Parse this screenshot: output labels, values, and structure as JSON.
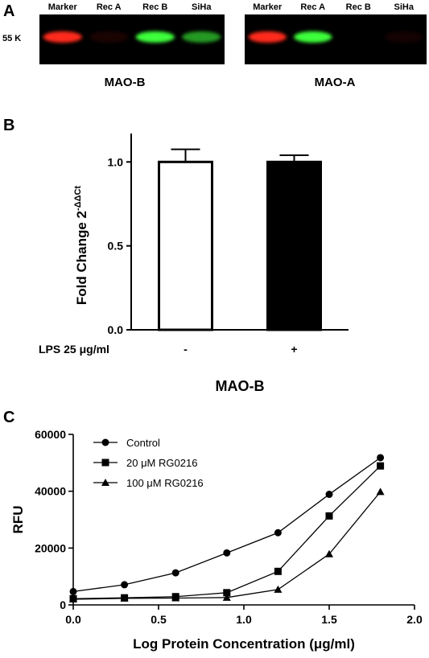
{
  "panels": {
    "a": "A",
    "b": "B",
    "c": "C"
  },
  "blots": [
    {
      "caption": "MAO-B",
      "size_marker": "55 K",
      "lanes": [
        {
          "label": "Marker",
          "band": "red",
          "intensity": 1.0
        },
        {
          "label": "Rec A",
          "band": "red",
          "intensity": 0.1
        },
        {
          "label": "Rec B",
          "band": "green",
          "intensity": 1.0
        },
        {
          "label": "SiHa",
          "band": "green",
          "intensity": 0.6
        }
      ]
    },
    {
      "caption": "MAO-A",
      "size_marker": "",
      "lanes": [
        {
          "label": "Marker",
          "band": "red",
          "intensity": 1.0
        },
        {
          "label": "Rec A",
          "band": "green",
          "intensity": 1.0
        },
        {
          "label": "Rec B",
          "band": "none",
          "intensity": 0
        },
        {
          "label": "SiHa",
          "band": "red",
          "intensity": 0.08
        }
      ]
    }
  ],
  "chart_data": [
    {
      "type": "bar",
      "ylabel_main": "Fold Change 2",
      "ylabel_sup": "-ΔΔCt",
      "category_axis_label": "LPS 25 μg/ml",
      "caption": "MAO-B",
      "categories": [
        "-",
        "+"
      ],
      "values": [
        1.0,
        1.0
      ],
      "errors": [
        0.075,
        0.04
      ],
      "fills": [
        "#ffffff",
        "#000000"
      ],
      "ylim": [
        0.0,
        1.15
      ],
      "yticks": [
        "0.0",
        "0.5",
        "1.0"
      ],
      "grid": false
    },
    {
      "type": "line",
      "xlabel": "Log Protein Concentration (μg/ml)",
      "ylabel": "RFU",
      "xlim": [
        0.0,
        2.0
      ],
      "ylim": [
        0,
        60000
      ],
      "xticks": [
        "0.0",
        "0.5",
        "1.0",
        "1.5",
        "2.0"
      ],
      "yticks": [
        "0",
        "20000",
        "40000",
        "60000"
      ],
      "legend_position": "top-left",
      "grid": false,
      "x": [
        0.0,
        0.3,
        0.6,
        0.9,
        1.2,
        1.5,
        1.8
      ],
      "series": [
        {
          "name": "Control",
          "marker": "circle",
          "values": [
            4700,
            7100,
            11300,
            18300,
            25400,
            38900,
            51800
          ]
        },
        {
          "name": "20 μM RG0216",
          "marker": "square",
          "values": [
            2200,
            2500,
            2900,
            4300,
            11800,
            31300,
            48900
          ]
        },
        {
          "name": "100 μM RG0216",
          "marker": "triangle",
          "values": [
            2000,
            2300,
            2400,
            2600,
            5400,
            17900,
            39800
          ]
        }
      ]
    }
  ]
}
